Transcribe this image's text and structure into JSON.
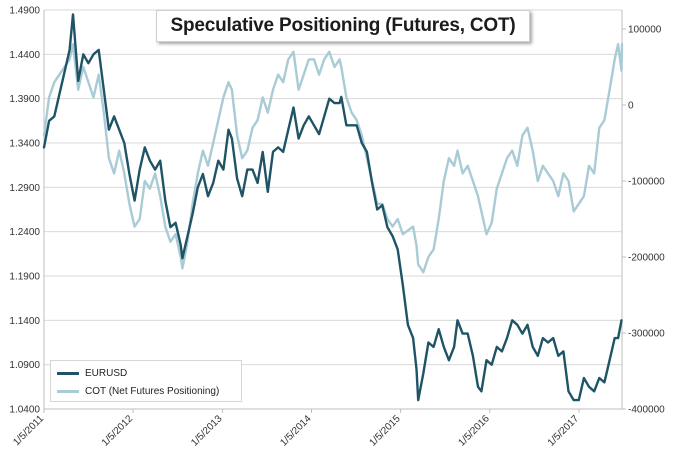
{
  "chart_data": {
    "type": "line",
    "title": "Speculative Positioning (Futures, COT)",
    "xlabel": "",
    "ylabel_left": "",
    "ylabel_right": "",
    "x_tick_labels": [
      "1/5/2011",
      "1/5/2012",
      "1/5/2013",
      "1/5/2014",
      "1/5/2015",
      "1/5/2016",
      "1/5/2017"
    ],
    "x_range": [
      "2011-01-05",
      "2017-06-30"
    ],
    "y_left": {
      "ylim": [
        1.04,
        1.49
      ],
      "ticks": [
        "1.0400",
        "1.0900",
        "1.1400",
        "1.1900",
        "1.2400",
        "1.2900",
        "1.3400",
        "1.3900",
        "1.4400",
        "1.4900"
      ]
    },
    "y_right": {
      "ylim": [
        -400000,
        125000
      ],
      "ticks": [
        "100000",
        "0",
        "-100000",
        "-200000",
        "-300000",
        "-400000"
      ]
    },
    "grid": "horizontal",
    "legend_position": "bottom-left",
    "series": [
      {
        "name": "EURUSD",
        "axis": "left",
        "color": "#1e5466",
        "points": [
          [
            "2011-01-05",
            1.335
          ],
          [
            "2011-01-26",
            1.365
          ],
          [
            "2011-02-16",
            1.37
          ],
          [
            "2011-03-09",
            1.395
          ],
          [
            "2011-03-30",
            1.42
          ],
          [
            "2011-04-20",
            1.445
          ],
          [
            "2011-05-04",
            1.485
          ],
          [
            "2011-05-25",
            1.41
          ],
          [
            "2011-06-15",
            1.44
          ],
          [
            "2011-07-06",
            1.43
          ],
          [
            "2011-07-27",
            1.44
          ],
          [
            "2011-08-17",
            1.445
          ],
          [
            "2011-09-07",
            1.4
          ],
          [
            "2011-09-28",
            1.355
          ],
          [
            "2011-10-19",
            1.37
          ],
          [
            "2011-11-09",
            1.355
          ],
          [
            "2011-11-30",
            1.34
          ],
          [
            "2011-12-21",
            1.305
          ],
          [
            "2012-01-11",
            1.275
          ],
          [
            "2012-02-01",
            1.31
          ],
          [
            "2012-02-22",
            1.335
          ],
          [
            "2012-03-14",
            1.32
          ],
          [
            "2012-04-04",
            1.31
          ],
          [
            "2012-04-25",
            1.32
          ],
          [
            "2012-05-16",
            1.275
          ],
          [
            "2012-06-06",
            1.245
          ],
          [
            "2012-06-27",
            1.25
          ],
          [
            "2012-07-18",
            1.225
          ],
          [
            "2012-07-25",
            1.21
          ],
          [
            "2012-08-15",
            1.235
          ],
          [
            "2012-09-05",
            1.26
          ],
          [
            "2012-09-26",
            1.29
          ],
          [
            "2012-10-17",
            1.305
          ],
          [
            "2012-11-07",
            1.28
          ],
          [
            "2012-11-28",
            1.295
          ],
          [
            "2012-12-19",
            1.32
          ],
          [
            "2013-01-09",
            1.31
          ],
          [
            "2013-01-30",
            1.355
          ],
          [
            "2013-02-13",
            1.345
          ],
          [
            "2013-03-06",
            1.3
          ],
          [
            "2013-03-27",
            1.28
          ],
          [
            "2013-04-17",
            1.31
          ],
          [
            "2013-05-08",
            1.31
          ],
          [
            "2013-05-29",
            1.295
          ],
          [
            "2013-06-19",
            1.33
          ],
          [
            "2013-07-10",
            1.285
          ],
          [
            "2013-07-31",
            1.33
          ],
          [
            "2013-08-21",
            1.335
          ],
          [
            "2013-09-11",
            1.33
          ],
          [
            "2013-10-02",
            1.355
          ],
          [
            "2013-10-23",
            1.38
          ],
          [
            "2013-11-13",
            1.345
          ],
          [
            "2013-12-04",
            1.36
          ],
          [
            "2013-12-25",
            1.37
          ],
          [
            "2014-01-15",
            1.36
          ],
          [
            "2014-02-05",
            1.35
          ],
          [
            "2014-02-26",
            1.37
          ],
          [
            "2014-03-19",
            1.39
          ],
          [
            "2014-04-09",
            1.385
          ],
          [
            "2014-04-30",
            1.385
          ],
          [
            "2014-05-07",
            1.392
          ],
          [
            "2014-05-28",
            1.36
          ],
          [
            "2014-06-18",
            1.36
          ],
          [
            "2014-07-09",
            1.36
          ],
          [
            "2014-07-30",
            1.34
          ],
          [
            "2014-08-20",
            1.33
          ],
          [
            "2014-09-10",
            1.295
          ],
          [
            "2014-10-01",
            1.265
          ],
          [
            "2014-10-22",
            1.27
          ],
          [
            "2014-11-12",
            1.245
          ],
          [
            "2014-12-03",
            1.235
          ],
          [
            "2014-12-24",
            1.22
          ],
          [
            "2015-01-14",
            1.18
          ],
          [
            "2015-02-04",
            1.135
          ],
          [
            "2015-02-25",
            1.12
          ],
          [
            "2015-03-11",
            1.085
          ],
          [
            "2015-03-18",
            1.05
          ],
          [
            "2015-04-08",
            1.08
          ],
          [
            "2015-04-29",
            1.115
          ],
          [
            "2015-05-20",
            1.11
          ],
          [
            "2015-06-10",
            1.13
          ],
          [
            "2015-07-01",
            1.11
          ],
          [
            "2015-07-22",
            1.095
          ],
          [
            "2015-08-12",
            1.11
          ],
          [
            "2015-08-26",
            1.14
          ],
          [
            "2015-09-16",
            1.125
          ],
          [
            "2015-10-07",
            1.125
          ],
          [
            "2015-10-28",
            1.1
          ],
          [
            "2015-11-18",
            1.065
          ],
          [
            "2015-12-02",
            1.06
          ],
          [
            "2015-12-23",
            1.095
          ],
          [
            "2016-01-13",
            1.09
          ],
          [
            "2016-02-03",
            1.11
          ],
          [
            "2016-02-24",
            1.105
          ],
          [
            "2016-03-16",
            1.12
          ],
          [
            "2016-04-06",
            1.14
          ],
          [
            "2016-04-27",
            1.135
          ],
          [
            "2016-05-18",
            1.125
          ],
          [
            "2016-06-08",
            1.135
          ],
          [
            "2016-06-29",
            1.11
          ],
          [
            "2016-07-20",
            1.1
          ],
          [
            "2016-08-10",
            1.12
          ],
          [
            "2016-08-31",
            1.115
          ],
          [
            "2016-09-21",
            1.12
          ],
          [
            "2016-10-12",
            1.1
          ],
          [
            "2016-11-02",
            1.105
          ],
          [
            "2016-11-23",
            1.06
          ],
          [
            "2016-12-14",
            1.05
          ],
          [
            "2017-01-04",
            1.05
          ],
          [
            "2017-01-25",
            1.075
          ],
          [
            "2017-02-15",
            1.065
          ],
          [
            "2017-03-08",
            1.06
          ],
          [
            "2017-03-29",
            1.075
          ],
          [
            "2017-04-19",
            1.07
          ],
          [
            "2017-05-10",
            1.095
          ],
          [
            "2017-05-31",
            1.12
          ],
          [
            "2017-06-14",
            1.12
          ],
          [
            "2017-06-28",
            1.14
          ]
        ]
      },
      {
        "name": "COT (Net Futures Positioning)",
        "axis": "right",
        "color": "#a9cbd6",
        "points": [
          [
            "2011-01-05",
            -40000
          ],
          [
            "2011-01-26",
            10000
          ],
          [
            "2011-02-16",
            30000
          ],
          [
            "2011-03-09",
            40000
          ],
          [
            "2011-03-30",
            50000
          ],
          [
            "2011-04-20",
            60000
          ],
          [
            "2011-05-04",
            80000
          ],
          [
            "2011-05-25",
            20000
          ],
          [
            "2011-06-15",
            50000
          ],
          [
            "2011-07-06",
            30000
          ],
          [
            "2011-07-27",
            10000
          ],
          [
            "2011-08-17",
            40000
          ],
          [
            "2011-09-07",
            -10000
          ],
          [
            "2011-09-28",
            -70000
          ],
          [
            "2011-10-19",
            -90000
          ],
          [
            "2011-11-09",
            -60000
          ],
          [
            "2011-11-30",
            -90000
          ],
          [
            "2011-12-21",
            -130000
          ],
          [
            "2012-01-11",
            -160000
          ],
          [
            "2012-02-01",
            -150000
          ],
          [
            "2012-02-22",
            -100000
          ],
          [
            "2012-03-14",
            -110000
          ],
          [
            "2012-04-04",
            -90000
          ],
          [
            "2012-04-25",
            -120000
          ],
          [
            "2012-05-16",
            -160000
          ],
          [
            "2012-06-06",
            -180000
          ],
          [
            "2012-06-27",
            -170000
          ],
          [
            "2012-07-18",
            -200000
          ],
          [
            "2012-07-25",
            -215000
          ],
          [
            "2012-08-15",
            -180000
          ],
          [
            "2012-09-05",
            -130000
          ],
          [
            "2012-09-26",
            -90000
          ],
          [
            "2012-10-17",
            -60000
          ],
          [
            "2012-11-07",
            -80000
          ],
          [
            "2012-11-28",
            -50000
          ],
          [
            "2012-12-19",
            -20000
          ],
          [
            "2013-01-09",
            10000
          ],
          [
            "2013-01-30",
            30000
          ],
          [
            "2013-02-13",
            20000
          ],
          [
            "2013-03-06",
            -40000
          ],
          [
            "2013-03-27",
            -70000
          ],
          [
            "2013-04-17",
            -60000
          ],
          [
            "2013-05-08",
            -30000
          ],
          [
            "2013-05-29",
            -20000
          ],
          [
            "2013-06-19",
            10000
          ],
          [
            "2013-07-10",
            -10000
          ],
          [
            "2013-07-31",
            20000
          ],
          [
            "2013-08-21",
            40000
          ],
          [
            "2013-09-11",
            30000
          ],
          [
            "2013-10-02",
            60000
          ],
          [
            "2013-10-23",
            70000
          ],
          [
            "2013-11-13",
            20000
          ],
          [
            "2013-12-04",
            40000
          ],
          [
            "2013-12-25",
            60000
          ],
          [
            "2014-01-15",
            60000
          ],
          [
            "2014-02-05",
            40000
          ],
          [
            "2014-02-26",
            60000
          ],
          [
            "2014-03-19",
            70000
          ],
          [
            "2014-04-09",
            50000
          ],
          [
            "2014-04-30",
            60000
          ],
          [
            "2014-05-07",
            50000
          ],
          [
            "2014-05-28",
            10000
          ],
          [
            "2014-06-18",
            -10000
          ],
          [
            "2014-07-09",
            -20000
          ],
          [
            "2014-07-30",
            -40000
          ],
          [
            "2014-08-20",
            -70000
          ],
          [
            "2014-09-10",
            -100000
          ],
          [
            "2014-10-01",
            -130000
          ],
          [
            "2014-10-22",
            -130000
          ],
          [
            "2014-11-12",
            -150000
          ],
          [
            "2014-12-03",
            -160000
          ],
          [
            "2014-12-24",
            -150000
          ],
          [
            "2015-01-14",
            -170000
          ],
          [
            "2015-02-04",
            -165000
          ],
          [
            "2015-02-25",
            -160000
          ],
          [
            "2015-03-11",
            -185000
          ],
          [
            "2015-03-18",
            -210000
          ],
          [
            "2015-04-08",
            -220000
          ],
          [
            "2015-04-29",
            -200000
          ],
          [
            "2015-05-20",
            -190000
          ],
          [
            "2015-06-10",
            -150000
          ],
          [
            "2015-07-01",
            -100000
          ],
          [
            "2015-07-22",
            -70000
          ],
          [
            "2015-08-12",
            -80000
          ],
          [
            "2015-08-26",
            -60000
          ],
          [
            "2015-09-16",
            -90000
          ],
          [
            "2015-10-07",
            -80000
          ],
          [
            "2015-10-28",
            -100000
          ],
          [
            "2015-11-18",
            -120000
          ],
          [
            "2015-12-02",
            -140000
          ],
          [
            "2015-12-23",
            -170000
          ],
          [
            "2016-01-13",
            -155000
          ],
          [
            "2016-02-03",
            -110000
          ],
          [
            "2016-02-24",
            -90000
          ],
          [
            "2016-03-16",
            -70000
          ],
          [
            "2016-04-06",
            -60000
          ],
          [
            "2016-04-27",
            -80000
          ],
          [
            "2016-05-18",
            -40000
          ],
          [
            "2016-06-08",
            -30000
          ],
          [
            "2016-06-29",
            -60000
          ],
          [
            "2016-07-20",
            -100000
          ],
          [
            "2016-08-10",
            -80000
          ],
          [
            "2016-08-31",
            -90000
          ],
          [
            "2016-09-21",
            -100000
          ],
          [
            "2016-10-12",
            -120000
          ],
          [
            "2016-11-02",
            -90000
          ],
          [
            "2016-11-23",
            -100000
          ],
          [
            "2016-12-14",
            -140000
          ],
          [
            "2017-01-04",
            -130000
          ],
          [
            "2017-01-25",
            -120000
          ],
          [
            "2017-02-15",
            -80000
          ],
          [
            "2017-03-08",
            -90000
          ],
          [
            "2017-03-29",
            -30000
          ],
          [
            "2017-04-19",
            -20000
          ],
          [
            "2017-05-10",
            20000
          ],
          [
            "2017-05-31",
            60000
          ],
          [
            "2017-06-14",
            80000
          ],
          [
            "2017-06-28",
            45000
          ],
          [
            "2017-06-30",
            80000
          ]
        ]
      }
    ]
  }
}
